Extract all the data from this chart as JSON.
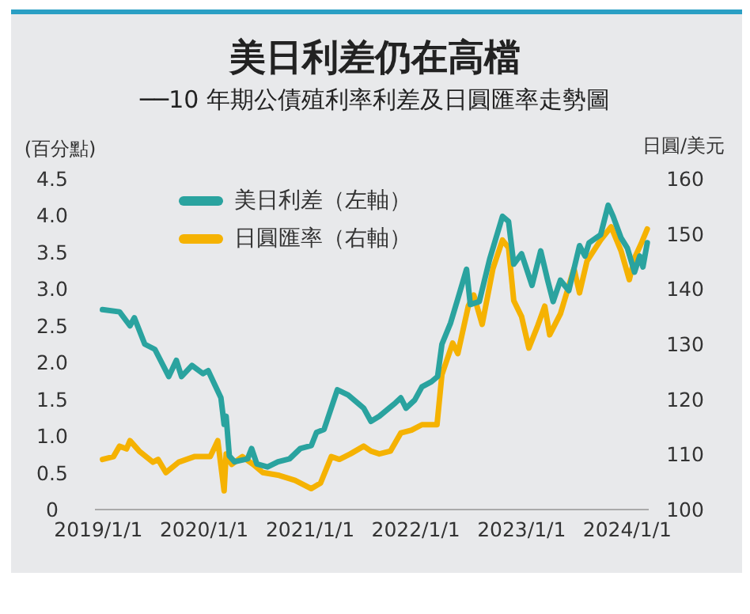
{
  "chart_data": {
    "type": "line",
    "title": "美日利差仍在高檔",
    "subtitle": "──10 年期公債殖利率利差及日圓匯率走勢圖",
    "ylabel": "(百分點)",
    "y2label": "日圓/美元",
    "legend": "top left",
    "xlim": [
      "2018-12-20",
      "2024-03-15"
    ],
    "xticks": [
      {
        "value": "2019-01-01",
        "label": "2019/1/1"
      },
      {
        "value": "2020-01-01",
        "label": "2020/1/1"
      },
      {
        "value": "2021-01-01",
        "label": "2021/1/1"
      },
      {
        "value": "2022-01-01",
        "label": "2022/1/1"
      },
      {
        "value": "2023-01-01",
        "label": "2023/1/1"
      },
      {
        "value": "2024-01-01",
        "label": "2024/1/1"
      }
    ],
    "ylim": [
      0,
      4.5
    ],
    "yticks": [
      0,
      0.5,
      {
        "value": 1,
        "label": "1.0"
      },
      1.5,
      {
        "value": 2,
        "label": "2.0"
      },
      2.5,
      {
        "value": 3,
        "label": "3.0"
      },
      3.5,
      {
        "value": 4,
        "label": "4.0"
      },
      4.5
    ],
    "y2lim": [
      100,
      160
    ],
    "y2ticks": [
      100,
      110,
      120,
      130,
      140,
      150,
      160
    ],
    "series": [
      {
        "name": "美日利差（左軸）",
        "color": "#2aa39f",
        "x": [
          "2019-01-15",
          "2019-03-15",
          "2019-04-20",
          "2019-05-05",
          "2019-06-10",
          "2019-07-15",
          "2019-09-01",
          "2019-09-27",
          "2019-10-15",
          "2019-11-20",
          "2019-12-28",
          "2020-01-15",
          "2020-02-28",
          "2020-03-10",
          "2020-03-17",
          "2020-03-28",
          "2020-04-15",
          "2020-05-30",
          "2020-06-13",
          "2020-07-01",
          "2020-08-07",
          "2020-09-12",
          "2020-10-22",
          "2020-11-28",
          "2021-01-05",
          "2021-01-23",
          "2021-02-18",
          "2021-04-05",
          "2021-05-12",
          "2021-07-05",
          "2021-07-30",
          "2021-08-28",
          "2021-10-22",
          "2021-11-10",
          "2021-11-28",
          "2021-12-28",
          "2022-01-22",
          "2022-02-24",
          "2022-03-17",
          "2022-04-01",
          "2022-05-01",
          "2022-05-26",
          "2022-06-25",
          "2022-07-08",
          "2022-08-08",
          "2022-09-13",
          "2022-10-27",
          "2022-11-17",
          "2022-12-05",
          "2023-01-01",
          "2023-02-06",
          "2023-03-08",
          "2023-04-01",
          "2023-04-20",
          "2023-05-15",
          "2023-06-13",
          "2023-07-20",
          "2023-08-08",
          "2023-08-22",
          "2023-10-01",
          "2023-10-27",
          "2023-11-13",
          "2023-12-10",
          "2024-01-01",
          "2024-01-26",
          "2024-02-13",
          "2024-02-24",
          "2024-03-10"
        ],
        "values": [
          2.72,
          2.69,
          2.5,
          2.61,
          2.25,
          2.18,
          1.81,
          2.03,
          1.81,
          1.96,
          1.85,
          1.89,
          1.52,
          1.16,
          1.27,
          0.73,
          0.65,
          0.69,
          0.83,
          0.62,
          0.58,
          0.65,
          0.69,
          0.83,
          0.87,
          1.05,
          1.09,
          1.63,
          1.56,
          1.38,
          1.2,
          1.27,
          1.45,
          1.52,
          1.38,
          1.49,
          1.67,
          1.74,
          1.81,
          2.25,
          2.54,
          2.87,
          3.27,
          2.79,
          2.83,
          3.41,
          3.99,
          3.92,
          3.34,
          3.48,
          3.05,
          3.52,
          3.12,
          2.83,
          3.12,
          2.98,
          3.59,
          3.45,
          3.63,
          3.74,
          4.14,
          3.99,
          3.7,
          3.56,
          3.23,
          3.45,
          3.3,
          3.63
        ]
      },
      {
        "name": "日圓匯率（右軸）",
        "color": "#f5b202",
        "axis": "y2",
        "x": [
          "2019-01-15",
          "2019-02-22",
          "2019-03-15",
          "2019-04-08",
          "2019-04-20",
          "2019-05-22",
          "2019-07-08",
          "2019-07-26",
          "2019-08-22",
          "2019-10-05",
          "2019-11-28",
          "2020-01-22",
          "2020-02-17",
          "2020-03-10",
          "2020-03-17",
          "2020-04-05",
          "2020-05-12",
          "2020-06-18",
          "2020-07-22",
          "2020-09-16",
          "2020-11-10",
          "2021-01-05",
          "2021-02-06",
          "2021-03-15",
          "2021-04-12",
          "2021-05-20",
          "2021-07-05",
          "2021-07-30",
          "2021-08-28",
          "2021-10-05",
          "2021-11-10",
          "2021-12-17",
          "2022-01-22",
          "2022-03-15",
          "2022-04-01",
          "2022-05-08",
          "2022-05-26",
          "2022-07-01",
          "2022-07-20",
          "2022-08-18",
          "2022-09-24",
          "2022-10-27",
          "2022-11-17",
          "2022-12-05",
          "2023-01-01",
          "2023-01-26",
          "2023-02-24",
          "2023-03-22",
          "2023-04-08",
          "2023-05-15",
          "2023-07-01",
          "2023-07-20",
          "2023-08-15",
          "2023-10-01",
          "2023-11-06",
          "2023-12-10",
          "2024-01-08",
          "2024-01-26",
          "2024-02-20",
          "2024-03-10"
        ],
        "values": [
          109.1,
          109.6,
          111.5,
          111.0,
          112.5,
          110.6,
          108.6,
          109.1,
          106.7,
          108.6,
          109.6,
          109.6,
          112.5,
          103.4,
          110.1,
          108.2,
          109.6,
          108.2,
          106.7,
          106.2,
          105.3,
          103.8,
          104.8,
          109.6,
          109.1,
          110.1,
          111.5,
          110.6,
          110.1,
          110.6,
          113.9,
          114.4,
          115.4,
          115.4,
          124.5,
          130.2,
          128.3,
          136.9,
          138.9,
          133.6,
          143.7,
          148.9,
          147.5,
          137.9,
          135.0,
          129.3,
          133.1,
          136.9,
          131.7,
          135.5,
          143.7,
          139.3,
          145.1,
          148.9,
          151.3,
          147.0,
          141.7,
          145.6,
          148.5,
          150.9
        ]
      }
    ]
  }
}
